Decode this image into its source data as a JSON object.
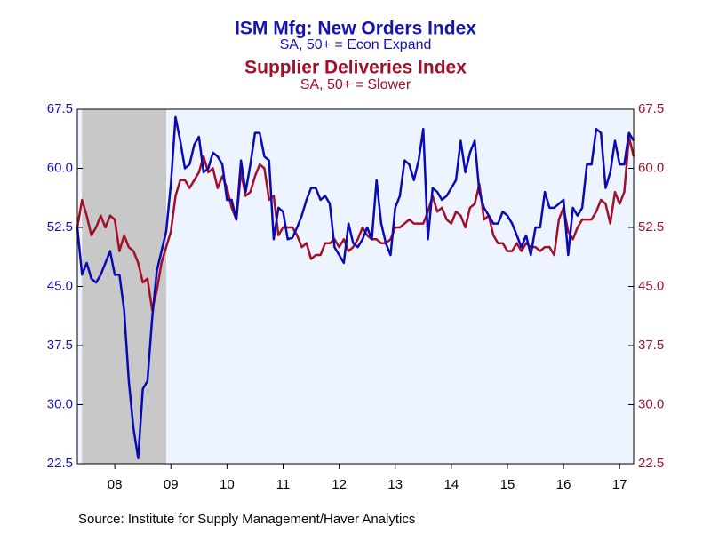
{
  "chart_data": {
    "type": "line",
    "title": "ISM Mfg: New Orders Index",
    "subtitle": "SA, 50+ = Econ Expand",
    "title2": "Supplier Deliveries Index",
    "subtitle2": "SA, 50+ = Slower",
    "source": "Source:  Institute for Supply Management/Haver Analytics",
    "shaded": [
      2007.917,
      2009.417
    ],
    "x": [
      2007.833,
      2007.917,
      2008,
      2008.083,
      2008.167,
      2008.25,
      2008.333,
      2008.417,
      2008.5,
      2008.583,
      2008.667,
      2008.75,
      2008.833,
      2008.917,
      2009,
      2009.083,
      2009.167,
      2009.25,
      2009.333,
      2009.417,
      2009.5,
      2009.583,
      2009.667,
      2009.75,
      2009.833,
      2009.917,
      2010,
      2010.083,
      2010.167,
      2010.25,
      2010.333,
      2010.417,
      2010.5,
      2010.583,
      2010.667,
      2010.75,
      2010.833,
      2010.917,
      2011,
      2011.083,
      2011.167,
      2011.25,
      2011.333,
      2011.417,
      2011.5,
      2011.583,
      2011.667,
      2011.75,
      2011.833,
      2011.917,
      2012,
      2012.083,
      2012.167,
      2012.25,
      2012.333,
      2012.417,
      2012.5,
      2012.583,
      2012.667,
      2012.75,
      2012.833,
      2012.917,
      2013,
      2013.083,
      2013.167,
      2013.25,
      2013.333,
      2013.417,
      2013.5,
      2013.583,
      2013.667,
      2013.75,
      2013.833,
      2013.917,
      2014,
      2014.083,
      2014.167,
      2014.25,
      2014.333,
      2014.417,
      2014.5,
      2014.583,
      2014.667,
      2014.75,
      2014.833,
      2014.917,
      2015,
      2015.083,
      2015.167,
      2015.25,
      2015.333,
      2015.417,
      2015.5,
      2015.583,
      2015.667,
      2015.75,
      2015.833,
      2015.917,
      2016,
      2016.083,
      2016.167,
      2016.25,
      2016.333,
      2016.417,
      2016.5,
      2016.583,
      2016.667,
      2016.75,
      2016.833,
      2016.917,
      2017,
      2017.083,
      2017.167,
      2017.25,
      2017.333,
      2017.417,
      2017.5,
      2017.583,
      2017.667,
      2017.75
    ],
    "series": [
      {
        "name": "ISM Mfg: New Orders Index",
        "color": "#0a0ab4",
        "axis": "y",
        "values": [
          52.5,
          46.5,
          48,
          46,
          45.5,
          46.5,
          48,
          49.5,
          46.5,
          46.5,
          42,
          33,
          27,
          23.2,
          32,
          33,
          41,
          47,
          49.5,
          52,
          58,
          66.5,
          63.5,
          60,
          60.5,
          63,
          64,
          59.5,
          60,
          62,
          61.5,
          60.5,
          56,
          56,
          53.5,
          61,
          57,
          60.5,
          64.5,
          64.5,
          61.5,
          61,
          51,
          55,
          54.5,
          51,
          51.2,
          52.5,
          54,
          56,
          57.5,
          57.5,
          56,
          56.5,
          55.5,
          50,
          49,
          48,
          53,
          50.5,
          50,
          51,
          52.5,
          51,
          58.5,
          53,
          50.5,
          49,
          55,
          56.5,
          61,
          60.5,
          58.5,
          61,
          65,
          51,
          57.5,
          57,
          56,
          56.5,
          57.5,
          58.5,
          63.5,
          59.5,
          62,
          63.5,
          57,
          55,
          54,
          53,
          53,
          54.5,
          54,
          53,
          51.5,
          50,
          51.5,
          49,
          52.5,
          52.5,
          57,
          55,
          55,
          55.5,
          56,
          49,
          55,
          54,
          55,
          60.5,
          60.5,
          65,
          64.5,
          57.5,
          59.5,
          63.5,
          60.5,
          60.5,
          64.5,
          63.5
        ]
      },
      {
        "name": "Supplier Deliveries Index",
        "color": "#a0102a",
        "axis": "y2",
        "values": [
          52.5,
          56,
          54,
          51.5,
          52.5,
          54,
          52.5,
          54,
          53.5,
          49.5,
          51.5,
          50,
          49.5,
          48,
          45.5,
          46,
          42,
          44.5,
          48,
          50,
          52,
          56.5,
          58.5,
          58.5,
          57.5,
          58.5,
          59.5,
          61.5,
          59.5,
          60,
          57.5,
          59,
          57.5,
          55,
          53.5,
          59.5,
          56.5,
          57,
          59,
          60.5,
          60,
          56,
          56.5,
          51.5,
          52.5,
          52.5,
          52.5,
          51.5,
          50,
          50.5,
          48.5,
          49,
          49,
          50.5,
          50.5,
          51,
          50,
          51,
          49.5,
          50,
          51,
          52.5,
          51.5,
          51,
          51,
          50.5,
          50.5,
          51,
          52.5,
          52.5,
          53,
          53.5,
          53,
          53,
          53,
          54.5,
          56.5,
          54.5,
          55,
          53.5,
          53,
          54.5,
          54,
          52.5,
          55,
          55.5,
          58,
          53.5,
          54,
          51.5,
          50.5,
          50.5,
          49.5,
          49.5,
          50.5,
          49.5,
          50.5,
          50,
          50,
          49.5,
          50,
          50,
          49,
          53.5,
          55,
          52,
          51,
          52.5,
          53.5,
          53.5,
          53.5,
          54.5,
          56,
          55.5,
          53,
          57,
          55.5,
          57,
          64,
          61.5
        ]
      }
    ],
    "xlim": [
      2007.833,
      2017.75
    ],
    "xticks": [
      {
        "value": 2008.5,
        "label": "08"
      },
      {
        "value": 2009.5,
        "label": "09"
      },
      {
        "value": 2010.5,
        "label": "10"
      },
      {
        "value": 2011.5,
        "label": "11"
      },
      {
        "value": 2012.5,
        "label": "12"
      },
      {
        "value": 2013.5,
        "label": "13"
      },
      {
        "value": 2014.5,
        "label": "14"
      },
      {
        "value": 2015.5,
        "label": "15"
      },
      {
        "value": 2016.5,
        "label": "16"
      },
      {
        "value": 2017.5,
        "label": "17"
      }
    ],
    "ylim": [
      22.5,
      67.5
    ],
    "yticks": [
      22.5,
      {
        "value": 30,
        "label": "30.0"
      },
      37.5,
      {
        "value": 45,
        "label": "45.0"
      },
      52.5,
      {
        "value": 60,
        "label": "60.0"
      },
      67.5
    ],
    "y2lim": [
      22.5,
      67.5
    ],
    "y2ticks": [
      22.5,
      {
        "value": 30,
        "label": "30.0"
      },
      37.5,
      {
        "value": 45,
        "label": "45.0"
      },
      52.5,
      {
        "value": 60,
        "label": "60.0"
      },
      67.5
    ]
  }
}
